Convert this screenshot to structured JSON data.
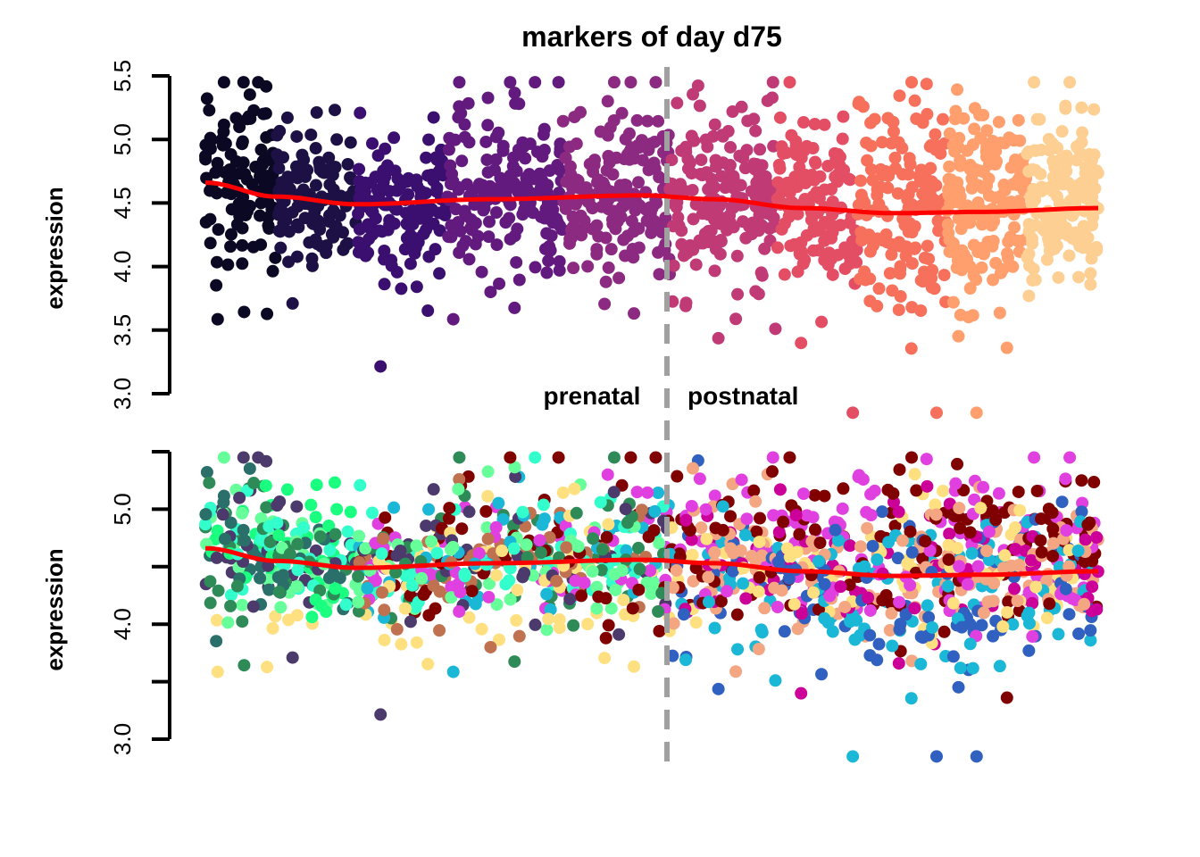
{
  "chart_data": [
    {
      "type": "scatter",
      "title": "markers of day d75",
      "ylabel": "expression",
      "ylim": [
        3.0,
        5.5
      ],
      "yticks": [
        "3.0",
        "3.5",
        "4.0",
        "4.5",
        "5.0",
        "5.5"
      ],
      "xlim": [
        0,
        1
      ],
      "divider_x": 0.517,
      "divider_style": "dashed gray",
      "labels": {
        "left": "prenatal",
        "right": "postnatal"
      },
      "smooth_line": {
        "color": "#ff0000",
        "x": [
          0,
          0.08,
          0.17,
          0.32,
          0.49,
          0.57,
          0.67,
          0.77,
          0.87,
          1.0
        ],
        "y": [
          4.66,
          4.55,
          4.49,
          4.53,
          4.56,
          4.53,
          4.46,
          4.42,
          4.43,
          4.46
        ]
      },
      "groups": [
        {
          "x": [
            0.0,
            0.08
          ],
          "color": "#0a0822",
          "mean": 4.65,
          "sd": 0.38,
          "n": 110
        },
        {
          "x": [
            0.08,
            0.17
          ],
          "color": "#1c1044",
          "mean": 4.55,
          "sd": 0.25,
          "n": 120
        },
        {
          "x": [
            0.17,
            0.27
          ],
          "color": "#3b0f70",
          "mean": 4.45,
          "sd": 0.25,
          "n": 140
        },
        {
          "x": [
            0.27,
            0.4
          ],
          "color": "#631a7e",
          "mean": 4.55,
          "sd": 0.32,
          "n": 180
        },
        {
          "x": [
            0.4,
            0.52
          ],
          "color": "#8c2981",
          "mean": 4.6,
          "sd": 0.32,
          "n": 180
        },
        {
          "x": [
            0.52,
            0.64
          ],
          "color": "#c03a76",
          "mean": 4.55,
          "sd": 0.33,
          "n": 170
        },
        {
          "x": [
            0.64,
            0.73
          ],
          "color": "#e34e65",
          "mean": 4.5,
          "sd": 0.35,
          "n": 140
        },
        {
          "x": [
            0.73,
            0.83
          ],
          "color": "#f6705c",
          "mean": 4.45,
          "sd": 0.42,
          "n": 160
        },
        {
          "x": [
            0.83,
            0.92
          ],
          "color": "#fe9f6d",
          "mean": 4.5,
          "sd": 0.38,
          "n": 160
        },
        {
          "x": [
            0.92,
            1.0
          ],
          "color": "#fecf92",
          "mean": 4.55,
          "sd": 0.32,
          "n": 150
        }
      ]
    },
    {
      "type": "scatter",
      "ylabel": "expression",
      "ylim": [
        3.0,
        5.5
      ],
      "yticks": [
        "3.0",
        "",
        "4.0",
        "",
        "5.0",
        ""
      ],
      "xlim": [
        0,
        1
      ],
      "divider_x": 0.517,
      "smooth_line": {
        "color": "#ff0000",
        "x": [
          0,
          0.08,
          0.17,
          0.32,
          0.49,
          0.57,
          0.67,
          0.77,
          0.87,
          1.0
        ],
        "y": [
          4.66,
          4.55,
          4.49,
          4.53,
          4.56,
          4.53,
          4.46,
          4.42,
          4.43,
          4.46
        ]
      },
      "palette_by_region": [
        {
          "x": [
            0.0,
            0.17
          ],
          "colors": [
            "#2a6f6a",
            "#33ffcc",
            "#66ff99",
            "#2e8b57",
            "#4b3a6b",
            "#1aff80"
          ]
        },
        {
          "x": [
            0.17,
            0.52
          ],
          "colors": [
            "#800000",
            "#4b3a6b",
            "#2e8b57",
            "#ffe080",
            "#1ab8d6",
            "#e040e0",
            "#66ff99",
            "#c0714f",
            "#33ffcc"
          ]
        },
        {
          "x": [
            0.52,
            1.0
          ],
          "colors": [
            "#800000",
            "#e040e0",
            "#f4a582",
            "#1ab8d6",
            "#3060c0",
            "#ffe080",
            "#cc0099",
            "#f4a582"
          ]
        }
      ]
    }
  ]
}
